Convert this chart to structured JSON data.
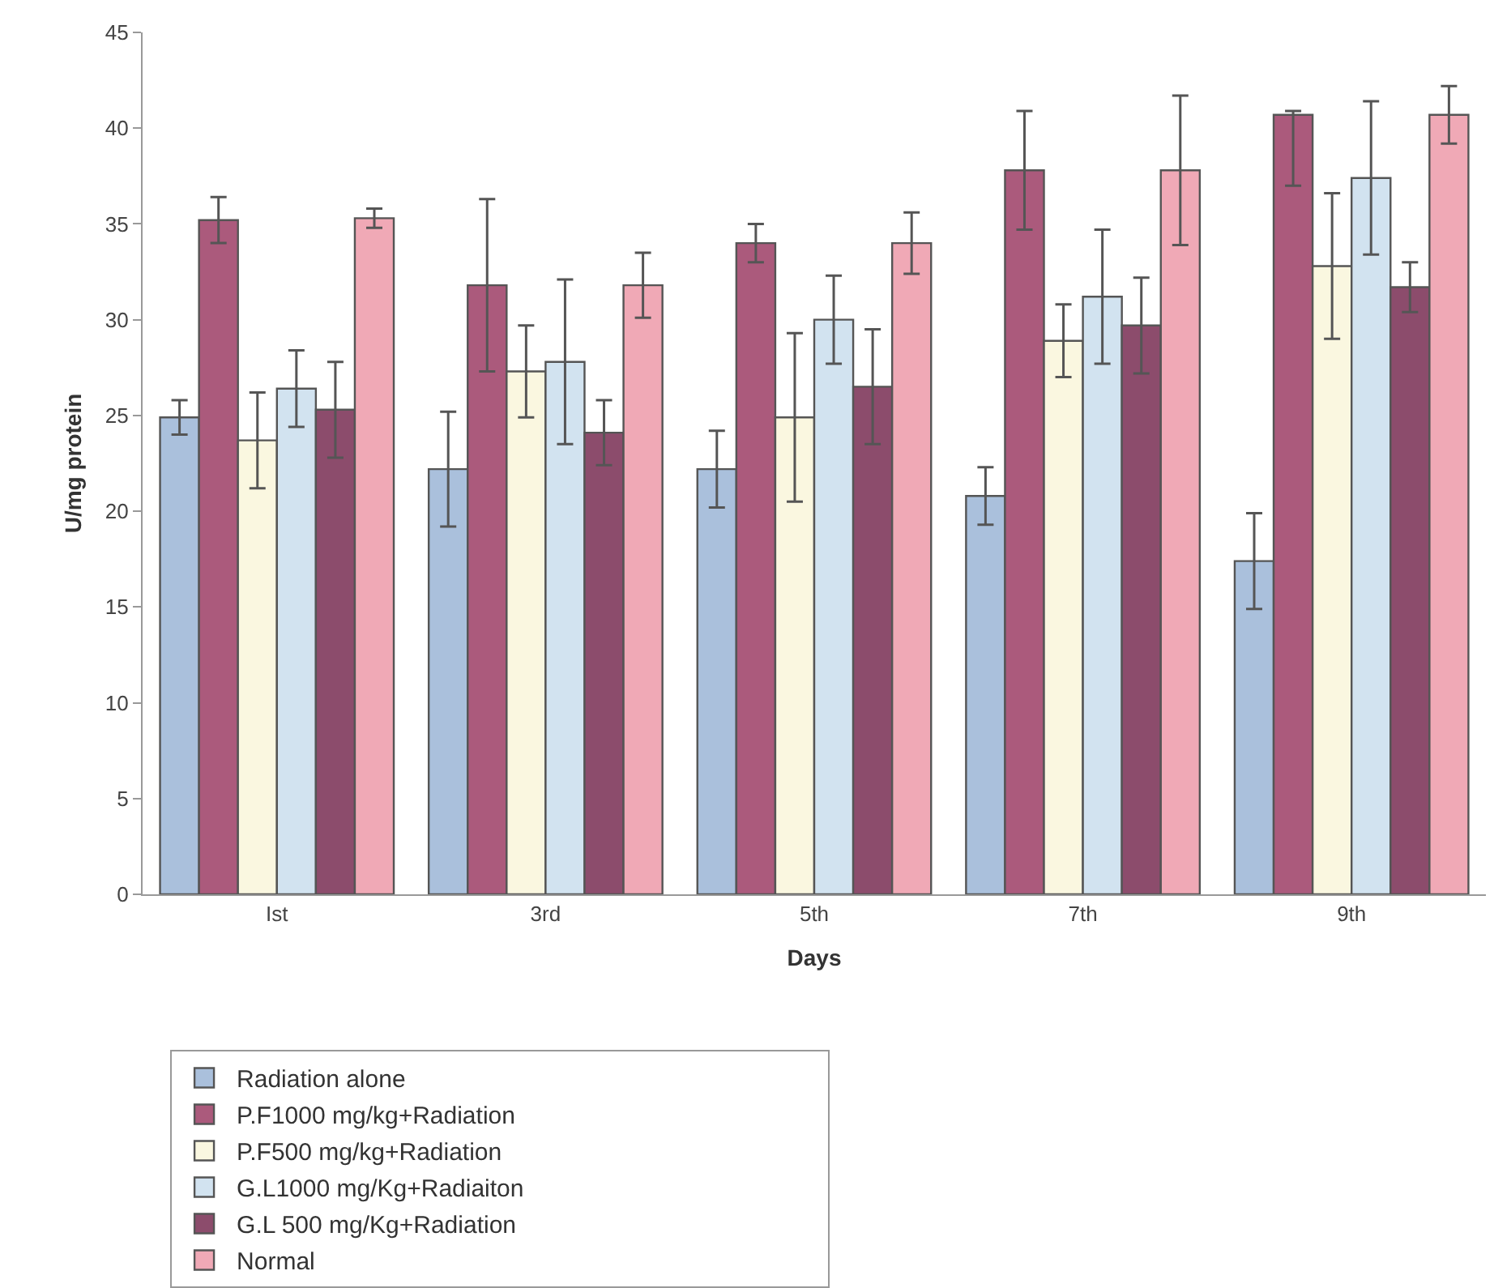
{
  "chart_data": {
    "type": "bar",
    "xlabel": "Days",
    "ylabel": "U/mg protein",
    "categories": [
      "Ist",
      "3rd",
      "5th",
      "7th",
      "9th"
    ],
    "ylim": [
      0,
      45
    ],
    "yticks": [
      0,
      5,
      10,
      15,
      20,
      25,
      30,
      35,
      40,
      45
    ],
    "grid": false,
    "legend": "bottom",
    "series": [
      {
        "name": "Radiation alone",
        "color": "#aac0dc",
        "values": [
          24.9,
          22.2,
          22.2,
          20.8,
          17.4
        ],
        "errors": [
          0.9,
          3,
          2,
          1.5,
          2.5
        ]
      },
      {
        "name": "P.F1000 mg/kg+Radiation",
        "color": "#ab5a7c",
        "values": [
          35.2,
          31.8,
          34.0,
          37.8,
          40.7
        ],
        "errors": [
          1.2,
          4.5,
          1,
          3.1,
          [
            37.0,
            40.9
          ]
        ]
      },
      {
        "name": "P.F500 mg/kg+Radiation",
        "color": "#faf7e0",
        "values": [
          23.7,
          27.3,
          24.9,
          28.9,
          32.8
        ],
        "errors": [
          2.5,
          2.4,
          4.4,
          1.9,
          3.8
        ]
      },
      {
        "name": "G.L1000 mg/Kg+Radiaiton",
        "color": "#d2e3f0",
        "values": [
          26.4,
          27.8,
          30.0,
          31.2,
          37.4
        ],
        "errors": [
          2,
          4.3,
          2.3,
          3.5,
          4
        ]
      },
      {
        "name": "G.L 500 mg/Kg+Radiation",
        "color": "#8c4c6c",
        "values": [
          25.3,
          24.1,
          26.5,
          29.7,
          31.7
        ],
        "errors": [
          2.5,
          1.7,
          3,
          2.5,
          1.3
        ]
      },
      {
        "name": "Normal",
        "color": "#f0a9b6",
        "values": [
          35.3,
          31.8,
          34.0,
          37.8,
          40.7
        ],
        "errors": [
          0.5,
          1.7,
          1.6,
          3.9,
          1.5
        ]
      }
    ]
  }
}
